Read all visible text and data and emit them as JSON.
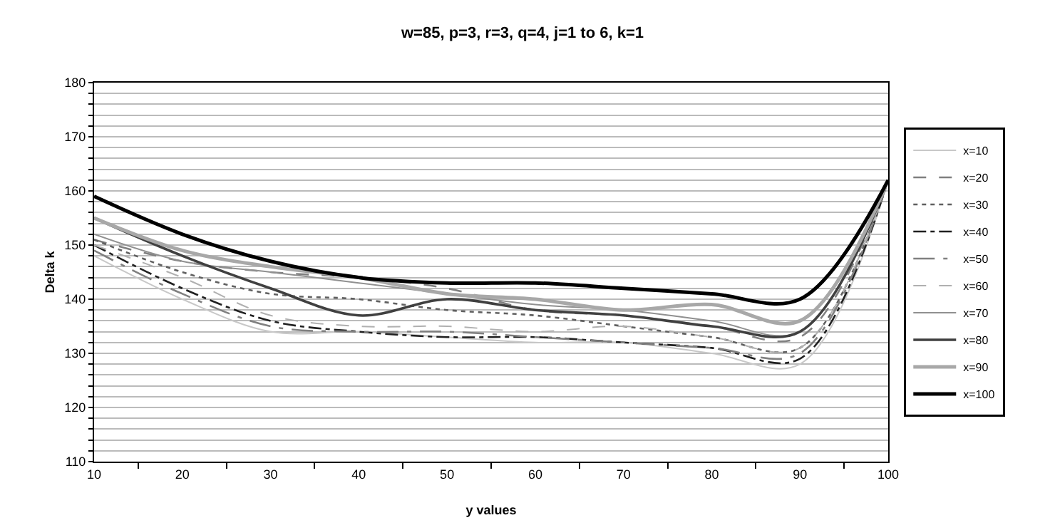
{
  "chart_data": {
    "type": "line",
    "title": "w=85, p=3, r=3, q=4, j=1 to 6, k=1",
    "xlabel": "y values",
    "ylabel": "Delta k",
    "categories": [
      "10",
      "20",
      "30",
      "40",
      "50",
      "60",
      "70",
      "80",
      "90",
      "100"
    ],
    "ylim": [
      110,
      180
    ],
    "yticks": [
      110,
      {
        "value": 112,
        "label": null
      },
      {
        "value": 114,
        "label": null
      },
      {
        "value": 116,
        "label": null
      },
      {
        "value": 118,
        "label": null
      },
      120,
      {
        "value": 122,
        "label": null
      },
      {
        "value": 124,
        "label": null
      },
      {
        "value": 126,
        "label": null
      },
      {
        "value": 128,
        "label": null
      },
      130,
      {
        "value": 132,
        "label": null
      },
      {
        "value": 134,
        "label": null
      },
      {
        "value": 136,
        "label": null
      },
      {
        "value": 138,
        "label": null
      },
      140,
      {
        "value": 142,
        "label": null
      },
      {
        "value": 144,
        "label": null
      },
      {
        "value": 146,
        "label": null
      },
      {
        "value": 148,
        "label": null
      },
      150,
      {
        "value": 152,
        "label": null
      },
      {
        "value": 154,
        "label": null
      },
      {
        "value": 156,
        "label": null
      },
      {
        "value": 158,
        "label": null
      },
      160,
      {
        "value": 162,
        "label": null
      },
      {
        "value": 164,
        "label": null
      },
      {
        "value": 166,
        "label": null
      },
      {
        "value": 168,
        "label": null
      },
      170,
      {
        "value": 172,
        "label": null
      },
      {
        "value": 174,
        "label": null
      },
      {
        "value": 176,
        "label": null
      },
      {
        "value": 178,
        "label": null
      },
      180
    ],
    "grid": "y",
    "legend": "right",
    "marker": "none",
    "series": [
      {
        "name": "x=10",
        "color": "#c8c8c8",
        "line_style": "solid",
        "values": [
          148,
          140,
          134,
          134,
          133,
          132,
          132,
          130,
          128,
          162
        ]
      },
      {
        "name": "x=20",
        "color": "#808080",
        "line_style": "dashed",
        "values": [
          151,
          147,
          145,
          144,
          142,
          138,
          137,
          135,
          133,
          162
        ]
      },
      {
        "name": "x=30",
        "color": "#606060",
        "line_style": "dotted",
        "values": [
          151,
          145,
          141,
          140,
          138,
          137,
          135,
          133,
          131,
          162
        ]
      },
      {
        "name": "x=40",
        "color": "#202020",
        "line_style": "dashdot",
        "values": [
          150,
          142,
          136,
          134,
          133,
          133,
          132,
          131,
          129,
          162
        ]
      },
      {
        "name": "x=50",
        "color": "#808080",
        "line_style": "dashdotdot",
        "values": [
          149,
          141,
          135,
          134,
          134,
          133,
          132,
          131,
          130,
          162
        ]
      },
      {
        "name": "x=60",
        "color": "#b0b0b0",
        "line_style": "dashed",
        "values": [
          150,
          144,
          137,
          135,
          135,
          134,
          135,
          133,
          131,
          162
        ]
      },
      {
        "name": "x=70",
        "color": "#909090",
        "line_style": "solid",
        "values": [
          152,
          147,
          145,
          143,
          141,
          139,
          138,
          136,
          134,
          162
        ]
      },
      {
        "name": "x=80",
        "color": "#404040",
        "line_style": "solid",
        "values": [
          155,
          148,
          142,
          137,
          140,
          138,
          137,
          135,
          134,
          162
        ]
      },
      {
        "name": "x=90",
        "color": "#a8a8a8",
        "line_style": "solid",
        "values": [
          155,
          149,
          146,
          144,
          141,
          140,
          138,
          139,
          136,
          162
        ]
      },
      {
        "name": "x=100",
        "color": "#000000",
        "line_style": "solid",
        "values": [
          159,
          152,
          147,
          144,
          143,
          143,
          142,
          141,
          140,
          162
        ]
      }
    ]
  }
}
